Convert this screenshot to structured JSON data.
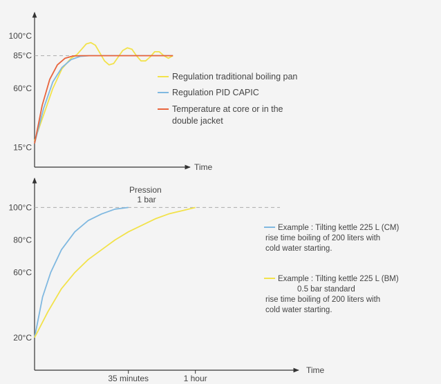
{
  "chart_data": [
    {
      "type": "line",
      "xlabel": "Time",
      "y_ticks": [
        "100°C",
        "85°C",
        "60°C",
        "15°C"
      ],
      "y_tick_values": [
        100,
        85,
        60,
        15
      ],
      "ylim": [
        0,
        118
      ],
      "xlim": [
        0,
        100
      ],
      "reference_line": {
        "y": 85,
        "style": "dashed"
      },
      "series": [
        {
          "name": "Regulation traditional boiling pan",
          "color": "#f2e24a",
          "x": [
            0,
            6,
            12,
            18,
            24,
            28,
            31,
            34,
            37,
            40,
            43,
            46,
            49,
            52,
            55,
            58,
            61,
            64,
            67,
            70,
            73,
            76,
            79,
            82,
            85,
            88,
            91
          ],
          "y": [
            20,
            40,
            60,
            75,
            83,
            86,
            90,
            94,
            95,
            93,
            87,
            81,
            78,
            79,
            84,
            89,
            91,
            90,
            85,
            81,
            81,
            84,
            88,
            88,
            85,
            83,
            85
          ]
        },
        {
          "name": "Regulation PID CAPIC",
          "color": "#7fb8e0",
          "x": [
            0,
            6,
            12,
            18,
            24,
            30,
            36,
            45,
            60,
            75,
            91
          ],
          "y": [
            18,
            45,
            65,
            76,
            82,
            84.5,
            85,
            85,
            85,
            85,
            85
          ]
        },
        {
          "name": "Temperature at core or in the double jacket",
          "color": "#e8643c",
          "x": [
            0,
            5,
            10,
            15,
            20,
            25,
            30,
            40,
            55,
            70,
            91
          ],
          "y": [
            18,
            47,
            67,
            78,
            83,
            84.7,
            85,
            85,
            85,
            85,
            85
          ]
        }
      ]
    },
    {
      "type": "line",
      "xlabel": "Time",
      "x_ticks": [
        "35 minutes",
        "1 hour"
      ],
      "x_tick_values": [
        35,
        60
      ],
      "y_ticks": [
        "100°C",
        "80°C",
        "60°C",
        "20°C"
      ],
      "y_tick_values": [
        100,
        80,
        60,
        20
      ],
      "ylim": [
        0,
        118
      ],
      "xlim": [
        0,
        98
      ],
      "reference_line": {
        "y": 100,
        "style": "dashed"
      },
      "annotation": [
        "Pression",
        "1 bar"
      ],
      "series": [
        {
          "name": "Example : Tilting kettle 225 L (CM)",
          "name_lines": [
            "Example : Tilting kettle 225 L (CM)",
            "rise time boiling of 200 liters with",
            "cold water starting."
          ],
          "color": "#7fb8e0",
          "x": [
            0,
            3,
            6,
            10,
            15,
            20,
            25,
            30,
            35
          ],
          "y": [
            20,
            45,
            60,
            74,
            85,
            92,
            96,
            99,
            100
          ]
        },
        {
          "name": "Example : Tilting kettle 225 L (BM)",
          "name_lines": [
            "Example : Tilting kettle 225 L (BM)",
            "0.5 bar standard",
            "rise time boiling of 200 liters with",
            "cold water starting."
          ],
          "color": "#f2e24a",
          "x": [
            0,
            5,
            10,
            15,
            20,
            25,
            30,
            35,
            40,
            45,
            50,
            55,
            60
          ],
          "y": [
            20,
            36,
            50,
            60,
            68,
            74,
            80,
            85,
            89,
            93,
            96,
            98,
            100
          ]
        }
      ]
    }
  ]
}
